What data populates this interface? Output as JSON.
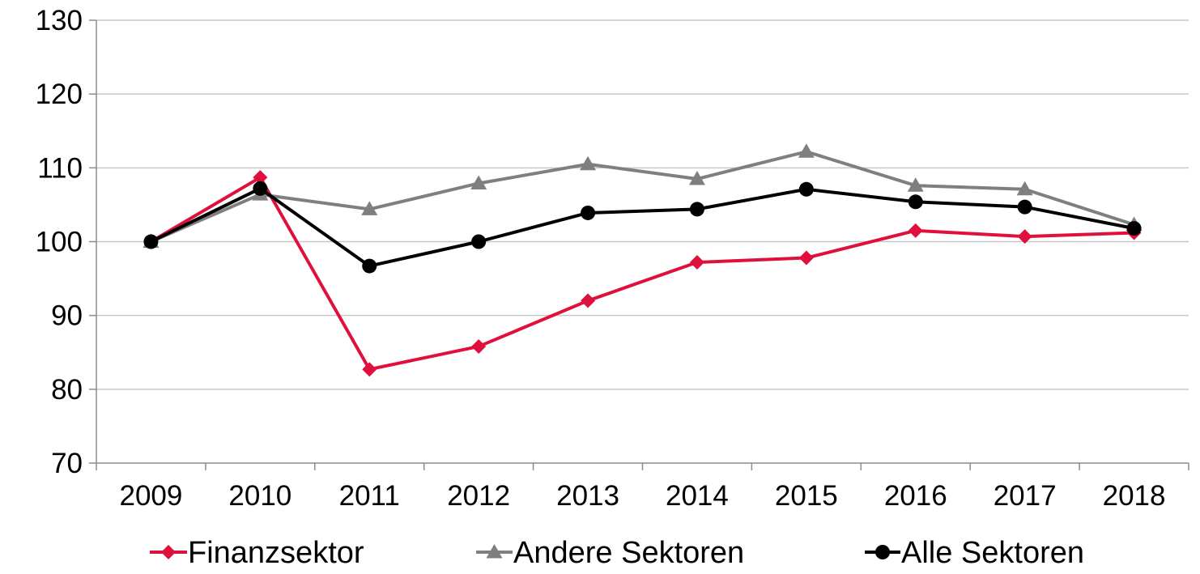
{
  "chart_data": {
    "type": "line",
    "categories": [
      "2009",
      "2010",
      "2011",
      "2012",
      "2013",
      "2014",
      "2015",
      "2016",
      "2017",
      "2018"
    ],
    "series": [
      {
        "name": "Finanzsektor",
        "color": "#e0103c",
        "marker": "diamond",
        "values": [
          100,
          108.7,
          82.7,
          85.8,
          92.0,
          97.2,
          97.8,
          101.5,
          100.7,
          101.2
        ]
      },
      {
        "name": "Andere Sektoren",
        "color": "#7f7f7f",
        "marker": "triangle",
        "values": [
          100,
          106.4,
          104.4,
          107.9,
          110.5,
          108.5,
          112.2,
          107.6,
          107.1,
          102.3
        ]
      },
      {
        "name": "Alle Sektoren",
        "color": "#000000",
        "marker": "circle",
        "values": [
          100,
          107.2,
          96.7,
          100.0,
          103.9,
          104.4,
          107.1,
          105.4,
          104.7,
          101.8
        ]
      }
    ],
    "ylim": [
      70,
      130
    ],
    "yticks": [
      70,
      80,
      90,
      100,
      110,
      120,
      130
    ],
    "grid": "horizontal",
    "legend_position": "bottom"
  }
}
